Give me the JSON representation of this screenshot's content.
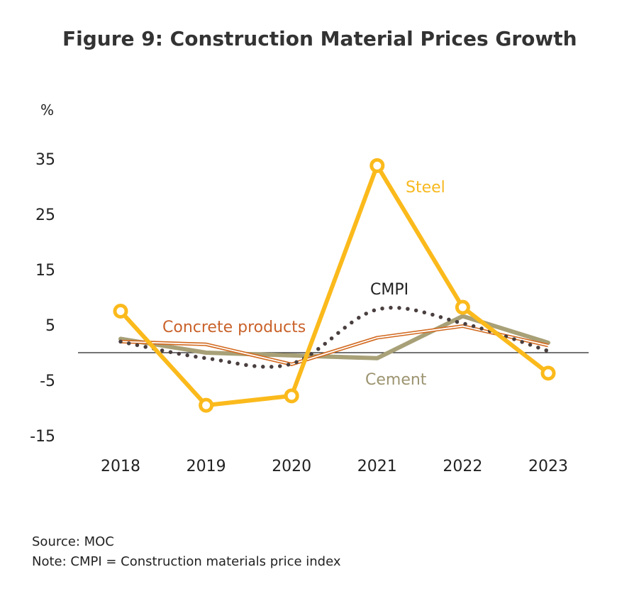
{
  "title": "Figure 9: Construction Material Prices Growth",
  "source": "Source: MOC",
  "note": "Note: CMPI = Construction materials price index",
  "chart_data": {
    "type": "line",
    "ylabel": "%",
    "xlabel": "",
    "ylim": [
      -15,
      35
    ],
    "yticks": [
      35,
      25,
      15,
      5,
      -5,
      -15
    ],
    "zero_line": true,
    "grid": false,
    "legend": "inline labels",
    "categories": [
      "2018",
      "2019",
      "2020",
      "2021",
      "2022",
      "2023"
    ],
    "series": [
      {
        "name": "Steel",
        "values": [
          7.5,
          -9.5,
          -7.8,
          33.8,
          8.2,
          -3.7
        ],
        "color": "#FBBA1C",
        "style": "thick-line-markers"
      },
      {
        "name": "CMPI",
        "values": [
          2.0,
          -1.0,
          -2.0,
          7.8,
          5.3,
          0.3
        ],
        "color": "#4A3F3F",
        "style": "dotted"
      },
      {
        "name": "Concrete products",
        "values": [
          2.0,
          1.5,
          -2.1,
          2.7,
          4.8,
          1.3
        ],
        "color": "#D2691E",
        "style": "double-line"
      },
      {
        "name": "Cement",
        "values": [
          2.5,
          0.0,
          -0.5,
          -1.0,
          6.6,
          1.8
        ],
        "color": "#A8A077",
        "style": "thick-line"
      }
    ]
  }
}
